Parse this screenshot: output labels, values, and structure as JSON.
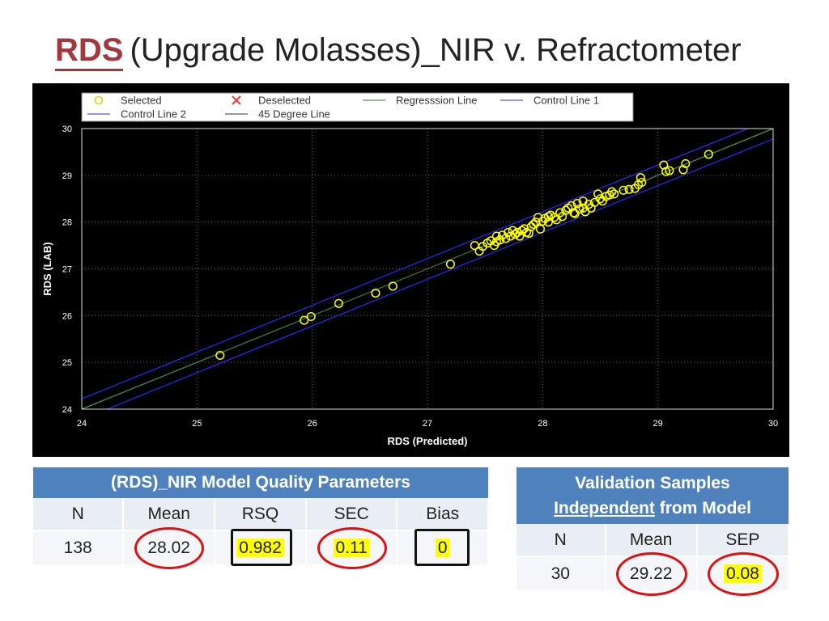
{
  "title": {
    "abbr": "RDS",
    "rest": "(Upgrade Molasses)_NIR v. Refractometer"
  },
  "chart_data": {
    "type": "scatter",
    "xlabel": "RDS (Predicted)",
    "ylabel": "RDS (LAB)",
    "xlim": [
      24,
      30
    ],
    "ylim": [
      24,
      30
    ],
    "xticks": [
      "24",
      "25",
      "26",
      "27",
      "28",
      "29",
      "30"
    ],
    "yticks": [
      "24",
      "25",
      "26",
      "27",
      "28",
      "29",
      "30"
    ],
    "grid": true,
    "legend_position": "top",
    "legend": [
      {
        "label": "Selected",
        "marker": "circle",
        "color": "#ffff00"
      },
      {
        "label": "Deselected",
        "marker": "x",
        "color": "#ff2020"
      },
      {
        "label": "Regresssion Line",
        "marker": "line",
        "color": "#1f7a1f"
      },
      {
        "label": "Control Line 1",
        "marker": "line",
        "color": "#2a2aff"
      },
      {
        "label": "Control Line 2",
        "marker": "line",
        "color": "#2a2aff"
      },
      {
        "label": "45 Degree Line",
        "marker": "line",
        "color": "#cccccc"
      }
    ],
    "control_offset": 0.22,
    "series": [
      {
        "name": "Selected",
        "points": [
          [
            25.2,
            25.15
          ],
          [
            25.93,
            25.9
          ],
          [
            25.99,
            25.98
          ],
          [
            26.23,
            26.26
          ],
          [
            26.55,
            26.48
          ],
          [
            26.7,
            26.63
          ],
          [
            27.2,
            27.1
          ],
          [
            27.41,
            27.5
          ],
          [
            27.45,
            27.38
          ],
          [
            27.48,
            27.48
          ],
          [
            27.52,
            27.55
          ],
          [
            27.55,
            27.6
          ],
          [
            27.58,
            27.5
          ],
          [
            27.6,
            27.7
          ],
          [
            27.63,
            27.62
          ],
          [
            27.65,
            27.72
          ],
          [
            27.68,
            27.65
          ],
          [
            27.7,
            27.78
          ],
          [
            27.72,
            27.7
          ],
          [
            27.74,
            27.82
          ],
          [
            27.76,
            27.74
          ],
          [
            27.78,
            27.78
          ],
          [
            27.8,
            27.7
          ],
          [
            27.82,
            27.82
          ],
          [
            27.84,
            27.86
          ],
          [
            27.86,
            27.78
          ],
          [
            27.88,
            27.76
          ],
          [
            27.9,
            27.9
          ],
          [
            27.92,
            27.95
          ],
          [
            27.94,
            28.0
          ],
          [
            27.96,
            28.1
          ],
          [
            27.98,
            27.85
          ],
          [
            28.0,
            28.02
          ],
          [
            28.02,
            28.08
          ],
          [
            28.05,
            28.0
          ],
          [
            28.07,
            28.15
          ],
          [
            28.1,
            28.1
          ],
          [
            28.12,
            28.05
          ],
          [
            28.15,
            28.2
          ],
          [
            28.17,
            28.12
          ],
          [
            28.2,
            28.25
          ],
          [
            28.22,
            28.3
          ],
          [
            28.25,
            28.35
          ],
          [
            28.27,
            28.2
          ],
          [
            28.3,
            28.4
          ],
          [
            28.32,
            28.28
          ],
          [
            28.35,
            28.45
          ],
          [
            28.37,
            28.22
          ],
          [
            28.4,
            28.38
          ],
          [
            28.42,
            28.3
          ],
          [
            28.45,
            28.42
          ],
          [
            28.48,
            28.6
          ],
          [
            28.5,
            28.5
          ],
          [
            28.52,
            28.45
          ],
          [
            28.55,
            28.55
          ],
          [
            28.58,
            28.58
          ],
          [
            28.6,
            28.65
          ],
          [
            28.62,
            28.6
          ],
          [
            28.7,
            28.68
          ],
          [
            28.75,
            28.7
          ],
          [
            28.8,
            28.72
          ],
          [
            28.83,
            28.8
          ],
          [
            28.85,
            28.95
          ],
          [
            28.86,
            28.85
          ],
          [
            29.05,
            29.22
          ],
          [
            29.07,
            29.08
          ],
          [
            29.1,
            29.1
          ],
          [
            29.22,
            29.12
          ],
          [
            29.24,
            29.25
          ],
          [
            29.44,
            29.45
          ],
          [
            28.28,
            28.18
          ],
          [
            28.35,
            28.3
          ],
          [
            27.6,
            27.58
          ],
          [
            28.05,
            28.12
          ]
        ]
      }
    ]
  },
  "model_table": {
    "header": "(RDS)_NIR Model Quality Parameters",
    "columns": [
      "N",
      "Mean",
      "RSQ",
      "SEC",
      "Bias"
    ],
    "values": [
      "138",
      "28.02",
      "0.982",
      "0.11",
      "0"
    ]
  },
  "validation_table": {
    "header_word1": "Validation Samples",
    "header_underlined": "Independent",
    "header_rest": " from Model",
    "columns": [
      "N",
      "Mean",
      "SEP"
    ],
    "values": [
      "30",
      "29.22",
      "0.08"
    ]
  },
  "colors": {
    "title_accent": "#a3383c",
    "table_header": "#4f81bd",
    "highlight": "#ffff00",
    "circle_mark": "#e01010"
  }
}
